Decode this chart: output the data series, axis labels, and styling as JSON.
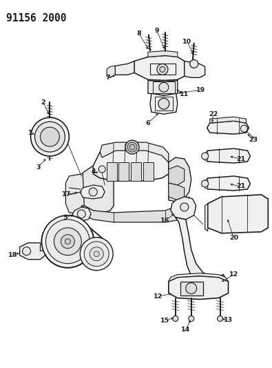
{
  "title": "91156 2000",
  "bg_color": "#ffffff",
  "line_color": "#1a1a1a",
  "fig_width": 3.95,
  "fig_height": 5.33,
  "dpi": 100,
  "title_fontsize": 10.5,
  "label_fontsize": 6.8,
  "lw_main": 0.9,
  "lw_detail": 0.6,
  "lw_label": 0.55
}
